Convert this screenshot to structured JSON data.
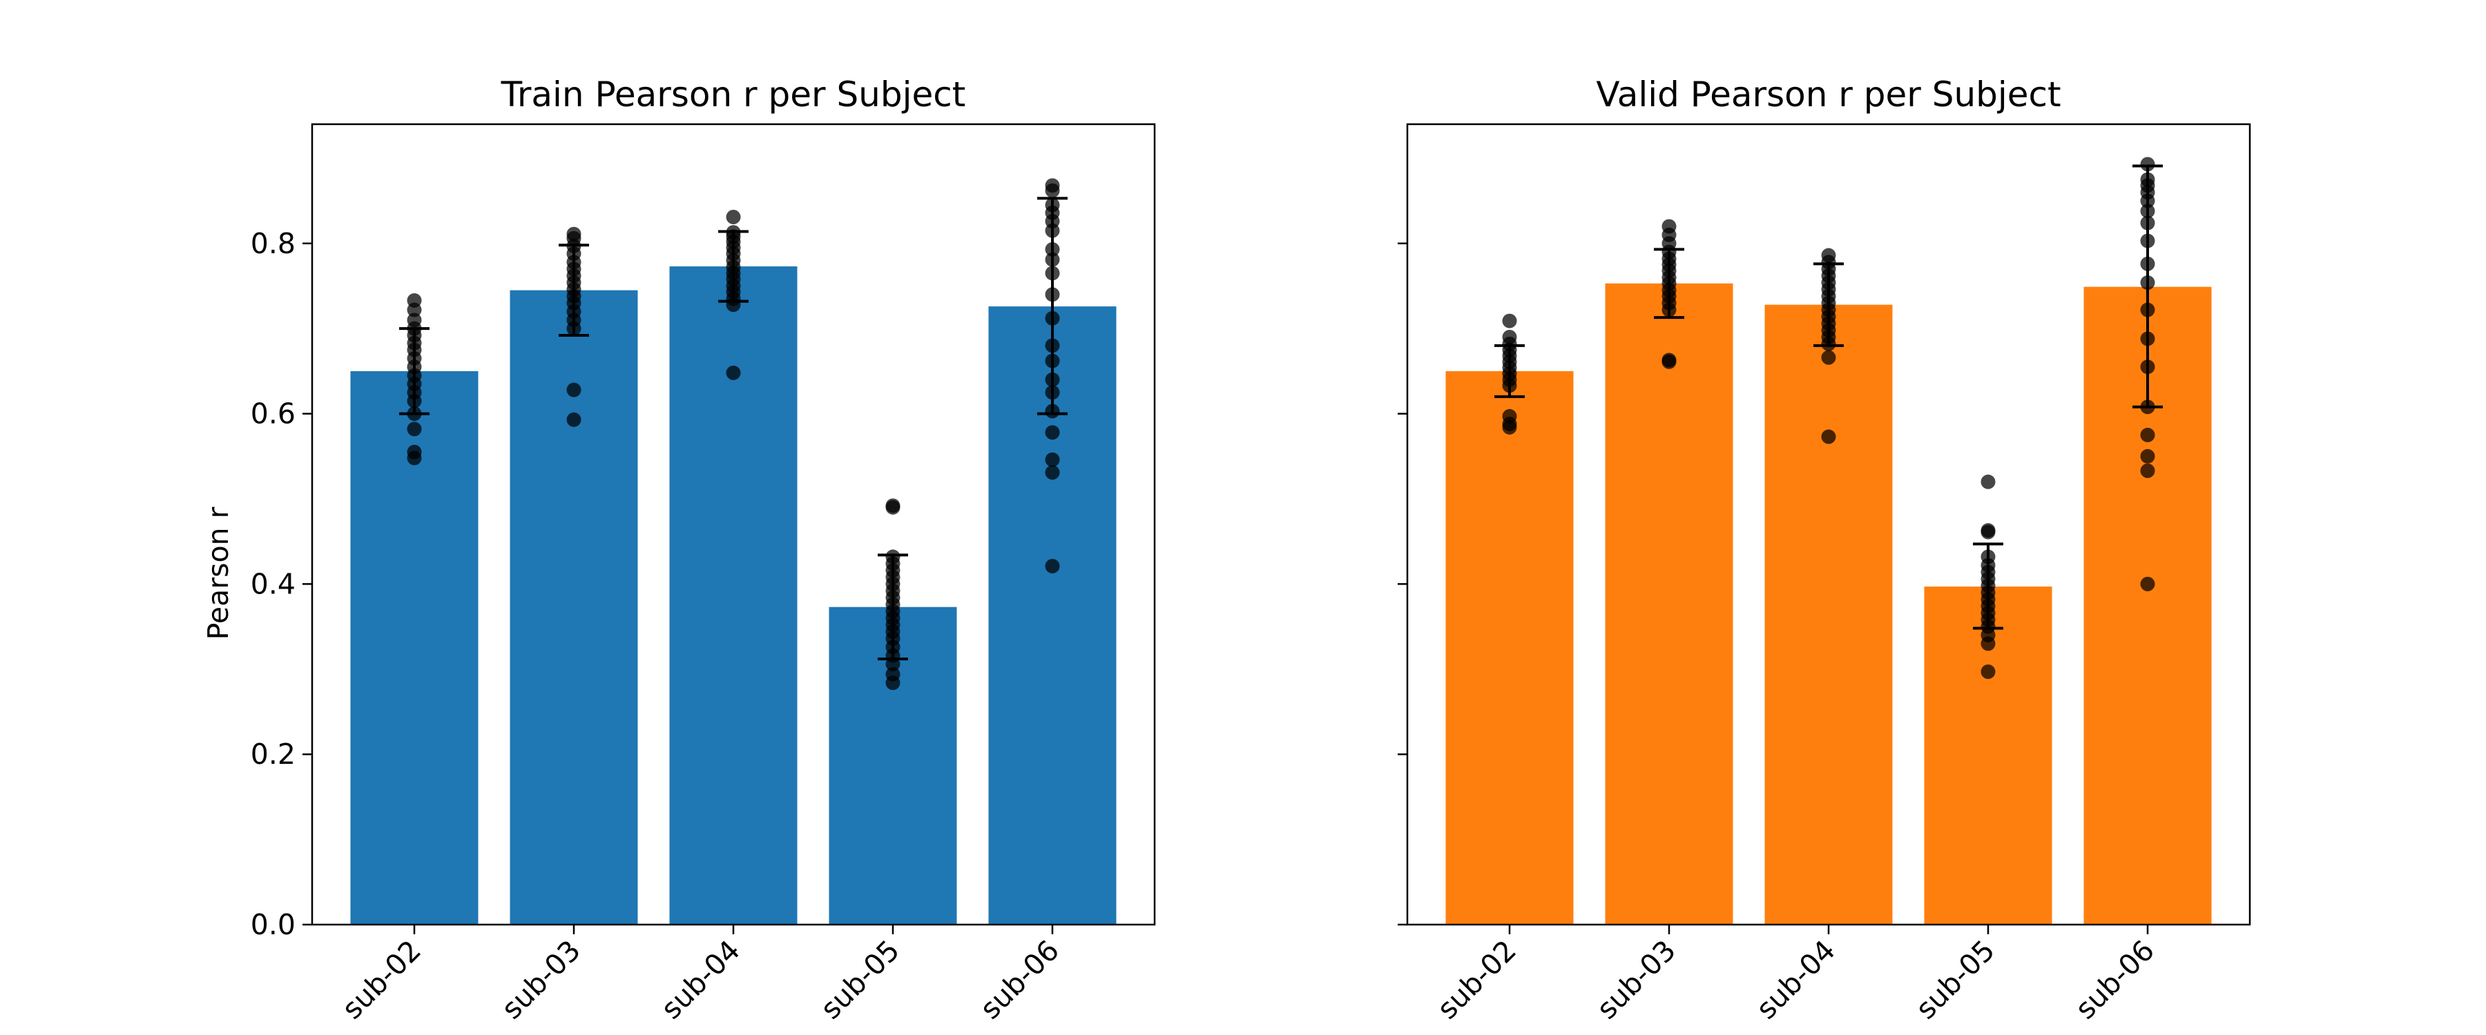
{
  "chart_data": [
    {
      "type": "bar",
      "title": "Train Pearson r per Subject",
      "xlabel": "",
      "ylabel": "Pearson r",
      "ylim": [
        0,
        0.94
      ],
      "yticks": [
        0.0,
        0.2,
        0.4,
        0.6,
        0.8
      ],
      "ytick_labels": [
        "0.0",
        "0.2",
        "0.4",
        "0.6",
        "0.8"
      ],
      "show_ytick_labels": true,
      "grid": false,
      "bar_color": "#1f77b4",
      "categories": [
        "sub-02",
        "sub-03",
        "sub-04",
        "sub-05",
        "sub-06"
      ],
      "values": [
        0.65,
        0.745,
        0.773,
        0.373,
        0.726
      ],
      "error_bars": [
        [
          0.6,
          0.7
        ],
        [
          0.692,
          0.798
        ],
        [
          0.732,
          0.814
        ],
        [
          0.312,
          0.434
        ],
        [
          0.6,
          0.853
        ]
      ],
      "points": [
        [
          0.733,
          0.722,
          0.71,
          0.7,
          0.692,
          0.683,
          0.675,
          0.665,
          0.655,
          0.645,
          0.635,
          0.625,
          0.615,
          0.6,
          0.582,
          0.555,
          0.548
        ],
        [
          0.811,
          0.806,
          0.797,
          0.788,
          0.778,
          0.77,
          0.762,
          0.754,
          0.746,
          0.738,
          0.73,
          0.72,
          0.71,
          0.7,
          0.628,
          0.593
        ],
        [
          0.831,
          0.813,
          0.808,
          0.802,
          0.795,
          0.788,
          0.78,
          0.772,
          0.765,
          0.758,
          0.75,
          0.743,
          0.735,
          0.728,
          0.648
        ],
        [
          0.492,
          0.49,
          0.432,
          0.424,
          0.416,
          0.408,
          0.4,
          0.392,
          0.384,
          0.376,
          0.368,
          0.36,
          0.352,
          0.344,
          0.336,
          0.326,
          0.316,
          0.306,
          0.294,
          0.284
        ],
        [
          0.868,
          0.862,
          0.845,
          0.836,
          0.826,
          0.815,
          0.793,
          0.781,
          0.765,
          0.74,
          0.712,
          0.68,
          0.662,
          0.64,
          0.625,
          0.603,
          0.578,
          0.546,
          0.531,
          0.421
        ]
      ]
    },
    {
      "type": "bar",
      "title": "Valid Pearson r per Subject",
      "xlabel": "",
      "ylabel": "",
      "ylim": [
        0,
        0.94
      ],
      "yticks": [
        0.0,
        0.2,
        0.4,
        0.6,
        0.8
      ],
      "ytick_labels": [
        "0.0",
        "0.2",
        "0.4",
        "0.6",
        "0.8"
      ],
      "show_ytick_labels": false,
      "grid": false,
      "bar_color": "#ff7f0e",
      "categories": [
        "sub-02",
        "sub-03",
        "sub-04",
        "sub-05",
        "sub-06"
      ],
      "values": [
        0.65,
        0.753,
        0.728,
        0.397,
        0.749
      ],
      "error_bars": [
        [
          0.62,
          0.68
        ],
        [
          0.713,
          0.793
        ],
        [
          0.68,
          0.776
        ],
        [
          0.348,
          0.447
        ],
        [
          0.608,
          0.891
        ]
      ],
      "points": [
        [
          0.709,
          0.69,
          0.682,
          0.675,
          0.668,
          0.661,
          0.654,
          0.647,
          0.64,
          0.633,
          0.597,
          0.588,
          0.584
        ],
        [
          0.82,
          0.81,
          0.8,
          0.79,
          0.782,
          0.775,
          0.768,
          0.76,
          0.753,
          0.745,
          0.738,
          0.73,
          0.722,
          0.663,
          0.661
        ],
        [
          0.786,
          0.778,
          0.77,
          0.762,
          0.754,
          0.746,
          0.738,
          0.73,
          0.722,
          0.714,
          0.706,
          0.698,
          0.69,
          0.682,
          0.666,
          0.573
        ],
        [
          0.52,
          0.463,
          0.461,
          0.432,
          0.422,
          0.414,
          0.406,
          0.398,
          0.39,
          0.382,
          0.374,
          0.366,
          0.358,
          0.35,
          0.34,
          0.33,
          0.297
        ],
        [
          0.893,
          0.875,
          0.868,
          0.86,
          0.85,
          0.838,
          0.824,
          0.803,
          0.776,
          0.754,
          0.722,
          0.688,
          0.655,
          0.608,
          0.575,
          0.55,
          0.533,
          0.4
        ]
      ]
    }
  ]
}
